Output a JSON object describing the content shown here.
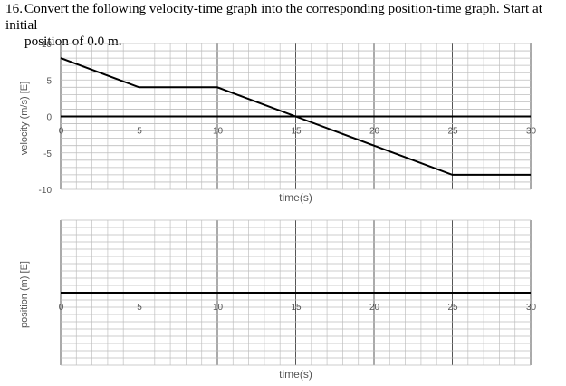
{
  "question": {
    "number": "16.",
    "line1": "Convert the following velocity-time graph into the corresponding position-time graph. Start at initial",
    "line2": "position of 0.0 m."
  },
  "chart_data": [
    {
      "type": "line",
      "ylabel": "velocity (m/s) [E]",
      "xlabel": "time(s)",
      "xlim": [
        0,
        30
      ],
      "ylim": [
        -10,
        10
      ],
      "x_ticks": [
        "0",
        "5",
        "10",
        "15",
        "20",
        "25",
        "30"
      ],
      "y_ticks": [
        "10",
        "5",
        "0",
        "-5",
        "-10"
      ],
      "grid": true,
      "series": [
        {
          "x": [
            0,
            5,
            10,
            15,
            20,
            25,
            30
          ],
          "y": [
            8,
            4,
            4,
            0,
            -4,
            -8,
            -8
          ]
        }
      ]
    },
    {
      "type": "line",
      "ylabel": "position (m) [E]",
      "xlabel": "time(s)",
      "xlim": [
        0,
        30
      ],
      "x_ticks": [
        "0",
        "5",
        "10",
        "15",
        "20",
        "25",
        "30"
      ],
      "y_ticks": [],
      "grid": true,
      "series": []
    }
  ]
}
